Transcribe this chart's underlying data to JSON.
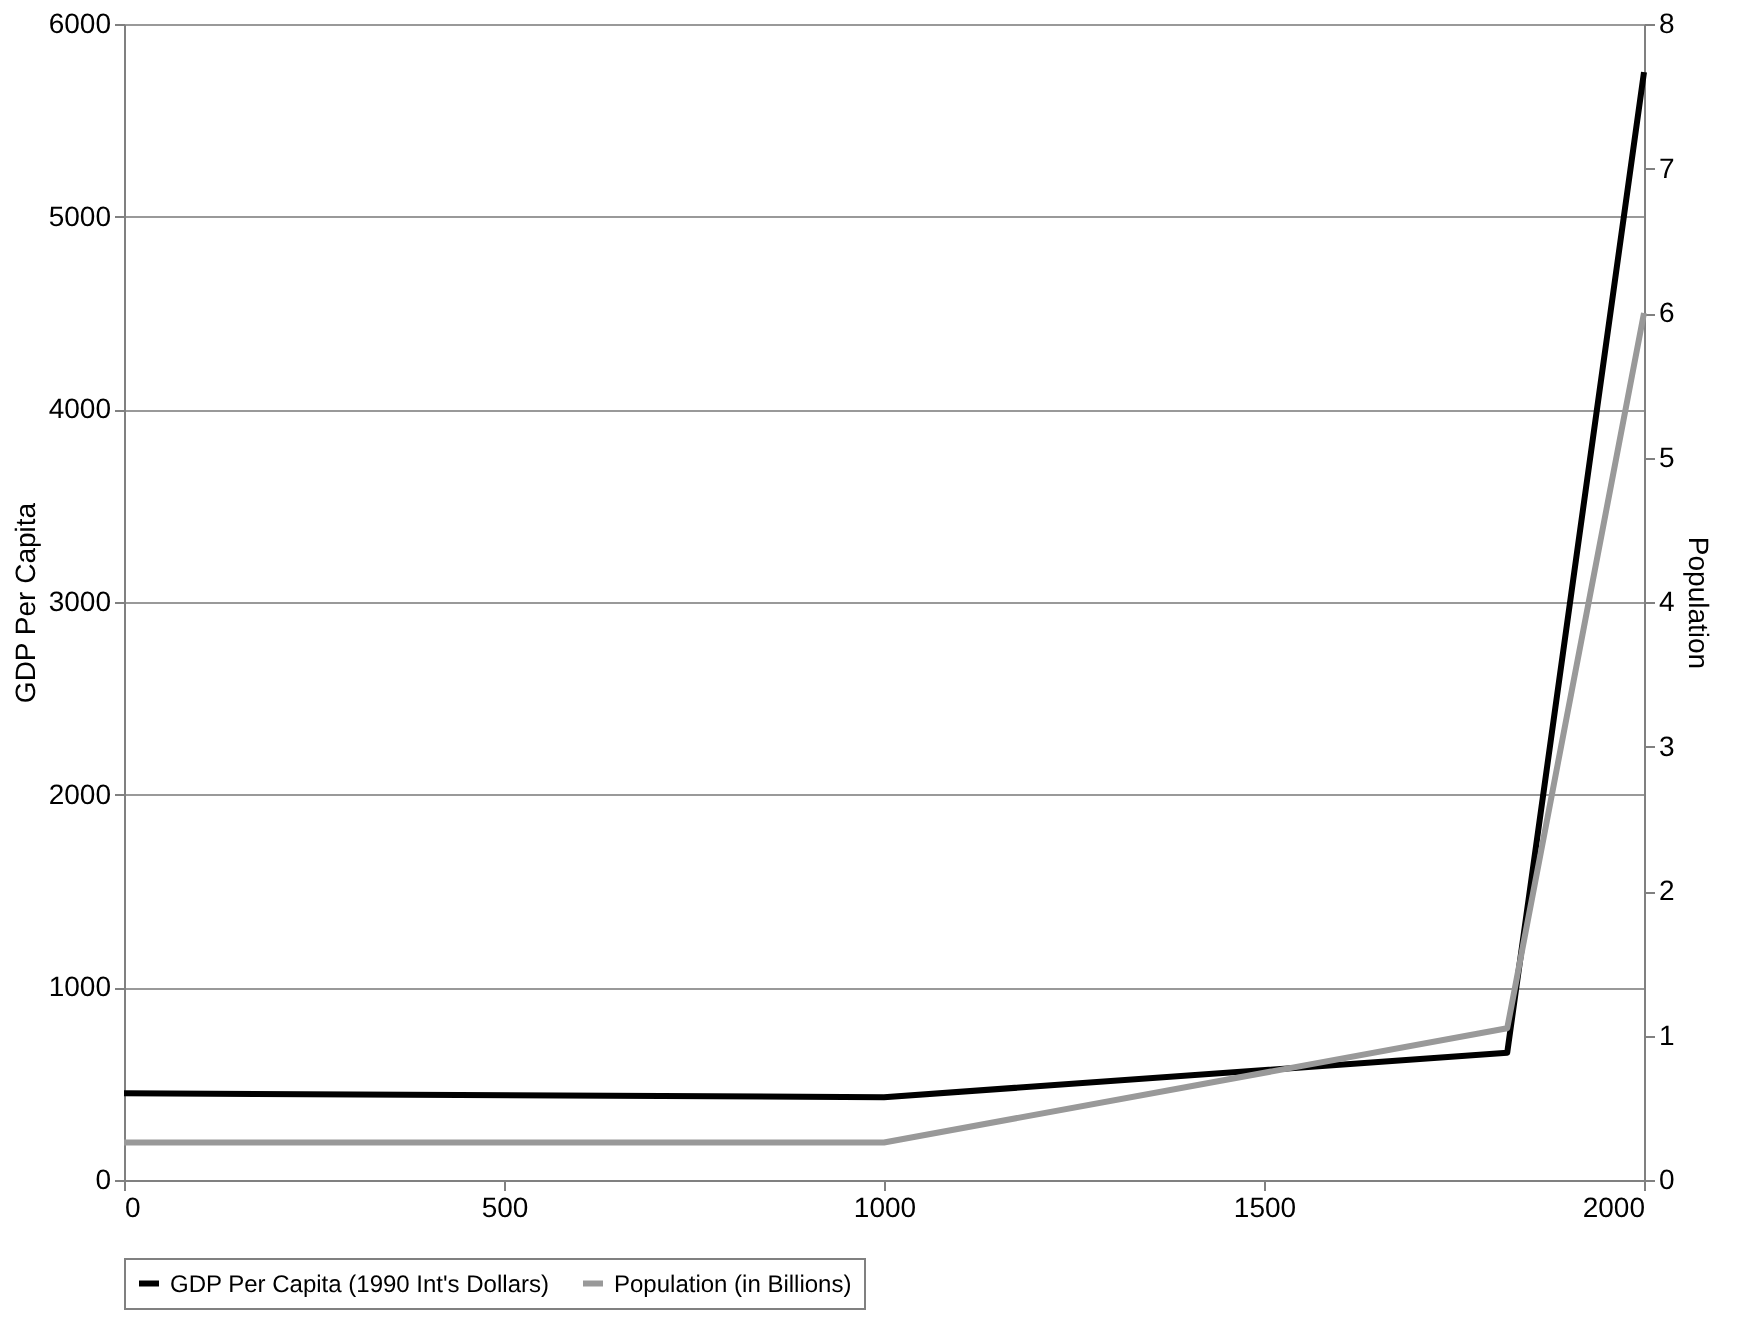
{
  "chart_data": {
    "type": "line",
    "x": [
      0,
      1000,
      1820,
      2000
    ],
    "xlim": [
      0,
      2000
    ],
    "xticks": [
      0,
      500,
      1000,
      1500,
      2000
    ],
    "ylabel": "GDP Per Capita",
    "y2label": "Population",
    "ylim": [
      0,
      6000
    ],
    "yticks": [
      0,
      1000,
      2000,
      3000,
      4000,
      5000,
      6000
    ],
    "y2lim": [
      0,
      8
    ],
    "y2ticks": [
      0,
      1,
      2,
      3,
      4,
      5,
      6,
      7,
      8
    ],
    "grid": "y",
    "legend": "bottom",
    "marker": "none",
    "line_style": "solid",
    "series": [
      {
        "name": "GDP Per Capita (1990 Int's Dollars)",
        "color": "#000000",
        "values": [
          450,
          430,
          660,
          5750
        ]
      },
      {
        "name": "Population (in Billions)",
        "color": "#999999",
        "values": [
          0.26,
          0.26,
          1.05,
          6.0
        ],
        "axis": "y2"
      }
    ]
  }
}
